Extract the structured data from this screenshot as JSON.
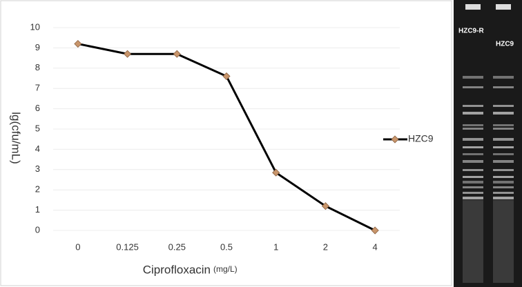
{
  "chart_data": {
    "type": "line",
    "x_label": "Ciprofloxacin",
    "x_unit": "(mg/L)",
    "y_label": "lg(cfu/mL)",
    "categories": [
      "0",
      "0.125",
      "0.25",
      "0.5",
      "1",
      "2",
      "4"
    ],
    "series": [
      {
        "name": "HZC9",
        "color": "#000000",
        "marker_color": "#c8956b",
        "values": [
          9.2,
          8.7,
          8.7,
          7.6,
          2.85,
          1.2,
          0
        ]
      }
    ],
    "ylim": [
      0,
      10
    ],
    "yticks": [
      0,
      1,
      2,
      3,
      4,
      5,
      6,
      7,
      8,
      9,
      10
    ],
    "grid": true,
    "legend": "right"
  },
  "gel": {
    "lanes": [
      "HZC9-R",
      "HZC9"
    ]
  }
}
